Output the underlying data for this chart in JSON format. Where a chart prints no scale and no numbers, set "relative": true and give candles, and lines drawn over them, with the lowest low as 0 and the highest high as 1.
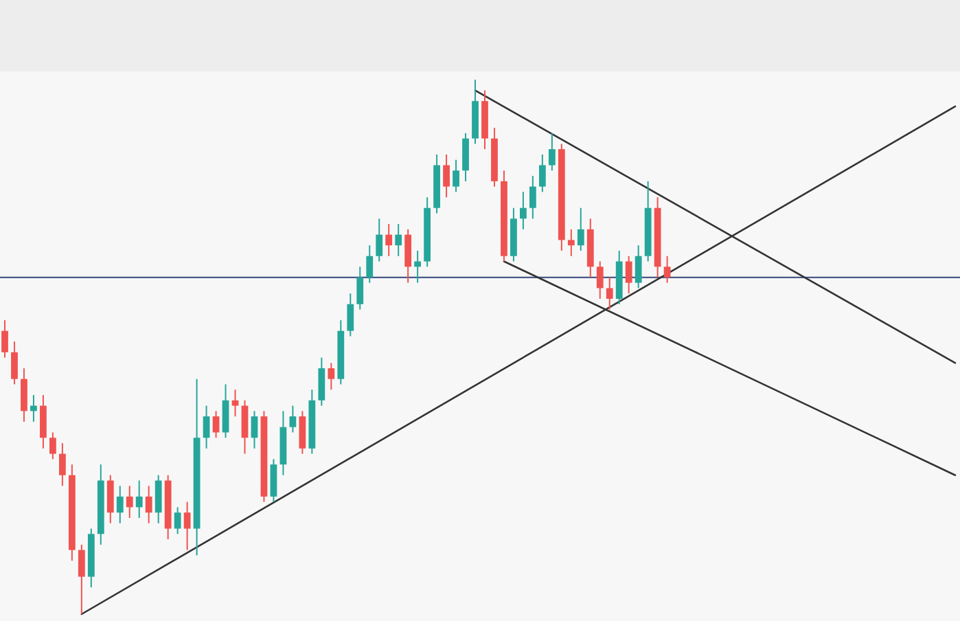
{
  "chart_data": {
    "type": "candlestick",
    "relative": true,
    "categories": [
      null,
      null,
      null,
      null,
      null,
      null,
      null,
      null,
      null,
      null,
      null,
      null,
      null,
      null,
      null,
      null,
      null,
      null,
      null,
      null,
      null,
      null,
      null,
      null,
      null,
      null,
      null,
      null,
      null,
      null,
      null,
      null,
      null,
      null,
      null,
      null,
      null,
      null,
      null,
      null,
      null,
      null,
      null,
      null,
      null,
      null,
      null,
      null,
      null,
      null,
      null,
      null,
      null,
      null,
      null,
      null,
      null,
      null,
      null,
      null,
      null,
      null,
      null,
      null,
      null,
      null,
      null,
      null,
      null,
      null,
      null,
      null,
      null,
      null,
      null,
      null,
      null,
      null,
      null,
      null,
      null,
      null,
      null,
      null,
      null,
      null,
      null,
      null,
      null,
      null,
      null,
      null,
      null,
      null,
      null,
      null,
      null,
      null,
      null,
      null
    ],
    "ohlc": [
      [
        0.53,
        0.55,
        0.48,
        0.49
      ],
      [
        0.49,
        0.51,
        0.43,
        0.44
      ],
      [
        0.44,
        0.46,
        0.36,
        0.38
      ],
      [
        0.38,
        0.41,
        0.36,
        0.39
      ],
      [
        0.39,
        0.41,
        0.31,
        0.33
      ],
      [
        0.33,
        0.34,
        0.29,
        0.3
      ],
      [
        0.3,
        0.32,
        0.24,
        0.26
      ],
      [
        0.26,
        0.28,
        0.1,
        0.12
      ],
      [
        0.12,
        0.13,
        0,
        0.07
      ],
      [
        0.07,
        0.16,
        0.05,
        0.15
      ],
      [
        0.15,
        0.28,
        0.13,
        0.25
      ],
      [
        0.25,
        0.26,
        0.17,
        0.19
      ],
      [
        0.19,
        0.24,
        0.17,
        0.22
      ],
      [
        0.22,
        0.24,
        0.18,
        0.2
      ],
      [
        0.2,
        0.25,
        0.18,
        0.22
      ],
      [
        0.22,
        0.24,
        0.17,
        0.19
      ],
      [
        0.19,
        0.26,
        0.17,
        0.25
      ],
      [
        0.25,
        0.26,
        0.14,
        0.16
      ],
      [
        0.16,
        0.2,
        0.15,
        0.19
      ],
      [
        0.19,
        0.21,
        0.12,
        0.16
      ],
      [
        0.16,
        0.44,
        0.11,
        0.33
      ],
      [
        0.33,
        0.39,
        0.31,
        0.37
      ],
      [
        0.37,
        0.38,
        0.33,
        0.34
      ],
      [
        0.34,
        0.43,
        0.33,
        0.4
      ],
      [
        0.4,
        0.42,
        0.37,
        0.39
      ],
      [
        0.39,
        0.4,
        0.3,
        0.33
      ],
      [
        0.33,
        0.38,
        0.31,
        0.37
      ],
      [
        0.37,
        0.38,
        0.21,
        0.22
      ],
      [
        0.22,
        0.29,
        0.21,
        0.28
      ],
      [
        0.28,
        0.38,
        0.26,
        0.35
      ],
      [
        0.35,
        0.39,
        0.34,
        0.37
      ],
      [
        0.37,
        0.38,
        0.3,
        0.31
      ],
      [
        0.31,
        0.42,
        0.3,
        0.4
      ],
      [
        0.4,
        0.48,
        0.39,
        0.46
      ],
      [
        0.46,
        0.47,
        0.42,
        0.44
      ],
      [
        0.44,
        0.55,
        0.43,
        0.53
      ],
      [
        0.53,
        0.6,
        0.52,
        0.58
      ],
      [
        0.58,
        0.65,
        0.57,
        0.63
      ],
      [
        0.63,
        0.69,
        0.62,
        0.67
      ],
      [
        0.67,
        0.74,
        0.66,
        0.71
      ],
      [
        0.71,
        0.73,
        0.67,
        0.69
      ],
      [
        0.69,
        0.73,
        0.67,
        0.71
      ],
      [
        0.71,
        0.72,
        0.62,
        0.65
      ],
      [
        0.65,
        0.68,
        0.62,
        0.66
      ],
      [
        0.66,
        0.78,
        0.65,
        0.76
      ],
      [
        0.76,
        0.86,
        0.75,
        0.84
      ],
      [
        0.84,
        0.86,
        0.78,
        0.8
      ],
      [
        0.8,
        0.85,
        0.79,
        0.83
      ],
      [
        0.83,
        0.9,
        0.81,
        0.89
      ],
      [
        0.89,
        1,
        0.88,
        0.96
      ],
      [
        0.96,
        0.98,
        0.87,
        0.89
      ],
      [
        0.89,
        0.91,
        0.8,
        0.81
      ],
      [
        0.81,
        0.83,
        0.66,
        0.67
      ],
      [
        0.67,
        0.76,
        0.66,
        0.74
      ],
      [
        0.74,
        0.79,
        0.72,
        0.76
      ],
      [
        0.76,
        0.82,
        0.74,
        0.8
      ],
      [
        0.8,
        0.86,
        0.79,
        0.84
      ],
      [
        0.84,
        0.9,
        0.83,
        0.87
      ],
      [
        0.87,
        0.88,
        0.68,
        0.7
      ],
      [
        0.7,
        0.72,
        0.67,
        0.69
      ],
      [
        0.69,
        0.76,
        0.68,
        0.72
      ],
      [
        0.72,
        0.74,
        0.63,
        0.65
      ],
      [
        0.65,
        0.66,
        0.59,
        0.61
      ],
      [
        0.61,
        0.63,
        0.57,
        0.59
      ],
      [
        0.59,
        0.68,
        0.58,
        0.66
      ],
      [
        0.66,
        0.67,
        0.6,
        0.62
      ],
      [
        0.62,
        0.69,
        0.61,
        0.67
      ],
      [
        0.67,
        0.81,
        0.66,
        0.76
      ],
      [
        0.76,
        0.78,
        0.63,
        0.65
      ],
      [
        0.65,
        0.67,
        0.62,
        0.63
      ],
      null,
      null,
      null,
      null,
      null,
      null,
      null,
      null,
      null,
      null,
      null,
      null,
      null,
      null,
      null,
      null,
      null,
      null,
      null,
      null,
      null,
      null,
      null,
      null,
      null,
      null,
      null,
      null,
      null,
      null
    ],
    "colors": [
      "#ef5350",
      "#ef5350",
      "#ef5350",
      "#26a69a",
      "#ef5350",
      "#ef5350",
      "#ef5350",
      "#ef5350",
      "#ef5350",
      "#26a69a",
      "#26a69a",
      "#ef5350",
      "#26a69a",
      "#ef5350",
      "#26a69a",
      "#ef5350",
      "#26a69a",
      "#ef5350",
      "#26a69a",
      "#ef5350",
      "#26a69a",
      "#26a69a",
      "#ef5350",
      "#26a69a",
      "#ef5350",
      "#ef5350",
      "#26a69a",
      "#ef5350",
      "#26a69a",
      "#26a69a",
      "#26a69a",
      "#ef5350",
      "#26a69a",
      "#26a69a",
      "#ef5350",
      "#26a69a",
      "#26a69a",
      "#26a69a",
      "#26a69a",
      "#26a69a",
      "#ef5350",
      "#26a69a",
      "#ef5350",
      "#26a69a",
      "#26a69a",
      "#26a69a",
      "#ef5350",
      "#26a69a",
      "#26a69a",
      "#26a69a",
      "#ef5350",
      "#ef5350",
      "#ef5350",
      "#26a69a",
      "#26a69a",
      "#26a69a",
      "#26a69a",
      "#26a69a",
      "#ef5350",
      "#ef5350",
      "#26a69a",
      "#ef5350",
      "#ef5350",
      "#ef5350",
      "#26a69a",
      "#ef5350",
      "#26a69a",
      "#26a69a",
      "#ef5350",
      "#ef5350",
      null,
      null,
      null,
      null,
      null,
      null,
      null,
      null,
      null,
      null,
      null,
      null,
      null,
      null,
      null,
      null,
      null,
      null,
      null,
      null,
      null,
      null,
      null,
      null,
      null,
      null,
      null,
      null,
      null,
      null
    ],
    "series": [
      {
        "type": "line",
        "values": [
          null,
          null,
          null,
          null,
          null,
          null,
          null,
          null,
          0,
          null,
          null,
          null,
          null,
          null,
          null,
          null,
          null,
          null,
          null,
          null,
          null,
          null,
          null,
          null,
          null,
          null,
          null,
          null,
          null,
          null,
          null,
          null,
          null,
          null,
          null,
          null,
          null,
          null,
          null,
          null,
          null,
          null,
          null,
          null,
          null,
          null,
          null,
          null,
          null,
          null,
          null,
          null,
          null,
          null,
          null,
          null,
          null,
          null,
          null,
          null,
          null,
          null,
          null,
          null,
          null,
          null,
          null,
          null,
          null,
          null,
          null,
          null,
          null,
          null,
          null,
          null,
          null,
          null,
          null,
          null,
          null,
          null,
          null,
          null,
          null,
          null,
          null,
          null,
          null,
          null,
          null,
          null,
          null,
          null,
          null,
          null,
          null,
          null,
          null,
          0.95
        ],
        "color": "#333333"
      },
      {
        "type": "line",
        "values": [
          null,
          null,
          null,
          null,
          null,
          null,
          null,
          null,
          null,
          null,
          null,
          null,
          null,
          null,
          null,
          null,
          null,
          null,
          null,
          null,
          null,
          null,
          null,
          null,
          null,
          null,
          null,
          null,
          null,
          null,
          null,
          null,
          null,
          null,
          null,
          null,
          null,
          null,
          null,
          null,
          null,
          null,
          null,
          null,
          null,
          null,
          null,
          null,
          null,
          0.98,
          null,
          null,
          null,
          null,
          null,
          null,
          null,
          null,
          null,
          null,
          null,
          null,
          null,
          null,
          null,
          null,
          null,
          null,
          null,
          null,
          null,
          null,
          null,
          null,
          null,
          null,
          null,
          null,
          null,
          null,
          null,
          null,
          null,
          null,
          null,
          null,
          null,
          null,
          null,
          null,
          null,
          null,
          null,
          null,
          null,
          null,
          null,
          null,
          null,
          0.47
        ],
        "color": "#333333"
      },
      {
        "type": "line",
        "values": [
          null,
          null,
          null,
          null,
          null,
          null,
          null,
          null,
          null,
          null,
          null,
          null,
          null,
          null,
          null,
          null,
          null,
          null,
          null,
          null,
          null,
          null,
          null,
          null,
          null,
          null,
          null,
          null,
          null,
          null,
          null,
          null,
          null,
          null,
          null,
          null,
          null,
          null,
          null,
          null,
          null,
          null,
          null,
          null,
          null,
          null,
          null,
          null,
          null,
          null,
          null,
          null,
          0.66,
          null,
          null,
          null,
          null,
          null,
          null,
          null,
          null,
          null,
          null,
          null,
          null,
          null,
          null,
          null,
          null,
          null,
          null,
          null,
          null,
          null,
          null,
          null,
          null,
          null,
          null,
          null,
          null,
          null,
          null,
          null,
          null,
          null,
          null,
          null,
          null,
          null,
          null,
          null,
          null,
          null,
          null,
          null,
          null,
          null,
          null,
          0.26
        ],
        "color": "#333333"
      }
    ],
    "ref_lines": [
      {
        "axis": "y",
        "value": 0.63,
        "color": "#4a5a8a"
      }
    ]
  }
}
